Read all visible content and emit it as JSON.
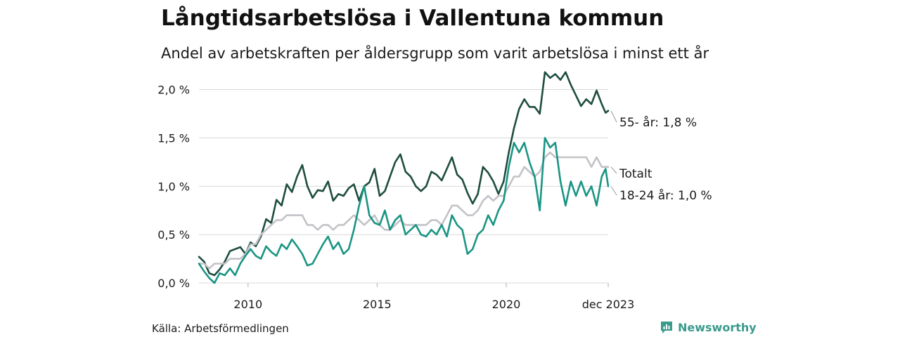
{
  "header": {
    "title": "Långtidsarbetslösa i Vallentuna kommun",
    "subtitle": "Andel av arbetskraften per åldersgrupp som varit arbetslösa i minst ett år"
  },
  "footer": {
    "source": "Källa: Arbetsförmedlingen",
    "brand": "Newsworthy"
  },
  "colors": {
    "older": "#1e4d40",
    "young": "#1a9583",
    "total": "#c4c2c8",
    "grid": "#d9d9d9",
    "brand": "#3a9a8c"
  },
  "chart_data": {
    "type": "line",
    "xlim": [
      2008.1,
      2023.95
    ],
    "ylim": [
      0,
      2.2
    ],
    "y_ticks": [
      {
        "value": 0.0,
        "label": "0,0 %"
      },
      {
        "value": 0.5,
        "label": "0,5 %"
      },
      {
        "value": 1.0,
        "label": "1,0 %"
      },
      {
        "value": 1.5,
        "label": "1,5 %"
      },
      {
        "value": 2.0,
        "label": "2,0 %"
      }
    ],
    "x_ticks": [
      {
        "value": 2010,
        "label": "2010"
      },
      {
        "value": 2015,
        "label": "2015"
      },
      {
        "value": 2020,
        "label": "2020"
      },
      {
        "value": 2023.95,
        "label": "dec 2023"
      }
    ],
    "series": [
      {
        "key": "older",
        "name": "55- år",
        "end_label": "55- år: 1,8 %",
        "points": [
          [
            2008.1,
            0.27
          ],
          [
            2008.3,
            0.22
          ],
          [
            2008.5,
            0.1
          ],
          [
            2008.7,
            0.08
          ],
          [
            2008.9,
            0.14
          ],
          [
            2009.1,
            0.22
          ],
          [
            2009.3,
            0.33
          ],
          [
            2009.5,
            0.35
          ],
          [
            2009.7,
            0.37
          ],
          [
            2009.9,
            0.3
          ],
          [
            2010.1,
            0.42
          ],
          [
            2010.3,
            0.38
          ],
          [
            2010.5,
            0.48
          ],
          [
            2010.7,
            0.66
          ],
          [
            2010.9,
            0.62
          ],
          [
            2011.1,
            0.86
          ],
          [
            2011.3,
            0.8
          ],
          [
            2011.5,
            1.02
          ],
          [
            2011.7,
            0.94
          ],
          [
            2011.9,
            1.1
          ],
          [
            2012.1,
            1.22
          ],
          [
            2012.3,
            1.0
          ],
          [
            2012.5,
            0.88
          ],
          [
            2012.7,
            0.96
          ],
          [
            2012.9,
            0.95
          ],
          [
            2013.1,
            1.05
          ],
          [
            2013.3,
            0.85
          ],
          [
            2013.5,
            0.92
          ],
          [
            2013.7,
            0.9
          ],
          [
            2013.9,
            0.98
          ],
          [
            2014.1,
            1.02
          ],
          [
            2014.3,
            0.85
          ],
          [
            2014.5,
            1.0
          ],
          [
            2014.7,
            1.04
          ],
          [
            2014.9,
            1.18
          ],
          [
            2015.1,
            0.9
          ],
          [
            2015.3,
            0.95
          ],
          [
            2015.5,
            1.1
          ],
          [
            2015.7,
            1.25
          ],
          [
            2015.9,
            1.33
          ],
          [
            2016.1,
            1.15
          ],
          [
            2016.3,
            1.1
          ],
          [
            2016.5,
            1.0
          ],
          [
            2016.7,
            0.95
          ],
          [
            2016.9,
            1.0
          ],
          [
            2017.1,
            1.15
          ],
          [
            2017.3,
            1.12
          ],
          [
            2017.5,
            1.06
          ],
          [
            2017.7,
            1.18
          ],
          [
            2017.9,
            1.3
          ],
          [
            2018.1,
            1.12
          ],
          [
            2018.3,
            1.07
          ],
          [
            2018.5,
            0.93
          ],
          [
            2018.7,
            0.82
          ],
          [
            2018.9,
            0.92
          ],
          [
            2019.1,
            1.2
          ],
          [
            2019.3,
            1.14
          ],
          [
            2019.5,
            1.05
          ],
          [
            2019.7,
            0.92
          ],
          [
            2019.9,
            1.05
          ],
          [
            2020.1,
            1.35
          ],
          [
            2020.3,
            1.6
          ],
          [
            2020.5,
            1.8
          ],
          [
            2020.7,
            1.9
          ],
          [
            2020.9,
            1.82
          ],
          [
            2021.1,
            1.82
          ],
          [
            2021.3,
            1.75
          ],
          [
            2021.5,
            2.18
          ],
          [
            2021.7,
            2.12
          ],
          [
            2021.9,
            2.16
          ],
          [
            2022.1,
            2.1
          ],
          [
            2022.3,
            2.18
          ],
          [
            2022.5,
            2.05
          ],
          [
            2022.7,
            1.94
          ],
          [
            2022.9,
            1.83
          ],
          [
            2023.1,
            1.9
          ],
          [
            2023.3,
            1.85
          ],
          [
            2023.5,
            1.99
          ],
          [
            2023.7,
            1.85
          ],
          [
            2023.85,
            1.76
          ],
          [
            2023.95,
            1.78
          ]
        ]
      },
      {
        "key": "total",
        "name": "Totalt",
        "end_label": "Totalt",
        "points": [
          [
            2008.1,
            0.2
          ],
          [
            2008.3,
            0.2
          ],
          [
            2008.5,
            0.15
          ],
          [
            2008.7,
            0.2
          ],
          [
            2008.9,
            0.2
          ],
          [
            2009.1,
            0.2
          ],
          [
            2009.3,
            0.25
          ],
          [
            2009.5,
            0.25
          ],
          [
            2009.7,
            0.25
          ],
          [
            2009.9,
            0.3
          ],
          [
            2010.1,
            0.4
          ],
          [
            2010.3,
            0.4
          ],
          [
            2010.5,
            0.5
          ],
          [
            2010.7,
            0.55
          ],
          [
            2010.9,
            0.6
          ],
          [
            2011.1,
            0.65
          ],
          [
            2011.3,
            0.65
          ],
          [
            2011.5,
            0.7
          ],
          [
            2011.7,
            0.7
          ],
          [
            2011.9,
            0.7
          ],
          [
            2012.1,
            0.7
          ],
          [
            2012.3,
            0.6
          ],
          [
            2012.5,
            0.6
          ],
          [
            2012.7,
            0.55
          ],
          [
            2012.9,
            0.6
          ],
          [
            2013.1,
            0.6
          ],
          [
            2013.3,
            0.55
          ],
          [
            2013.5,
            0.6
          ],
          [
            2013.7,
            0.6
          ],
          [
            2013.9,
            0.65
          ],
          [
            2014.1,
            0.7
          ],
          [
            2014.3,
            0.65
          ],
          [
            2014.5,
            0.6
          ],
          [
            2014.7,
            0.65
          ],
          [
            2014.9,
            0.7
          ],
          [
            2015.1,
            0.6
          ],
          [
            2015.3,
            0.55
          ],
          [
            2015.5,
            0.55
          ],
          [
            2015.7,
            0.6
          ],
          [
            2015.9,
            0.65
          ],
          [
            2016.1,
            0.6
          ],
          [
            2016.3,
            0.6
          ],
          [
            2016.5,
            0.6
          ],
          [
            2016.7,
            0.6
          ],
          [
            2016.9,
            0.6
          ],
          [
            2017.1,
            0.65
          ],
          [
            2017.3,
            0.65
          ],
          [
            2017.5,
            0.6
          ],
          [
            2017.7,
            0.7
          ],
          [
            2017.9,
            0.8
          ],
          [
            2018.1,
            0.8
          ],
          [
            2018.3,
            0.75
          ],
          [
            2018.5,
            0.7
          ],
          [
            2018.7,
            0.7
          ],
          [
            2018.9,
            0.75
          ],
          [
            2019.1,
            0.85
          ],
          [
            2019.3,
            0.9
          ],
          [
            2019.5,
            0.85
          ],
          [
            2019.7,
            0.9
          ],
          [
            2019.9,
            0.9
          ],
          [
            2020.1,
            1.0
          ],
          [
            2020.3,
            1.1
          ],
          [
            2020.5,
            1.1
          ],
          [
            2020.7,
            1.2
          ],
          [
            2020.9,
            1.15
          ],
          [
            2021.1,
            1.1
          ],
          [
            2021.3,
            1.15
          ],
          [
            2021.5,
            1.3
          ],
          [
            2021.7,
            1.35
          ],
          [
            2021.9,
            1.3
          ],
          [
            2022.1,
            1.3
          ],
          [
            2022.3,
            1.3
          ],
          [
            2022.5,
            1.3
          ],
          [
            2022.7,
            1.3
          ],
          [
            2022.9,
            1.3
          ],
          [
            2023.1,
            1.3
          ],
          [
            2023.3,
            1.2
          ],
          [
            2023.5,
            1.3
          ],
          [
            2023.7,
            1.2
          ],
          [
            2023.85,
            1.2
          ],
          [
            2023.95,
            1.2
          ]
        ]
      },
      {
        "key": "young",
        "name": "18-24 år",
        "end_label": "18-24 år: 1,0 %",
        "points": [
          [
            2008.1,
            0.2
          ],
          [
            2008.3,
            0.12
          ],
          [
            2008.5,
            0.05
          ],
          [
            2008.7,
            0.0
          ],
          [
            2008.9,
            0.1
          ],
          [
            2009.1,
            0.08
          ],
          [
            2009.3,
            0.15
          ],
          [
            2009.5,
            0.08
          ],
          [
            2009.7,
            0.2
          ],
          [
            2009.9,
            0.28
          ],
          [
            2010.1,
            0.35
          ],
          [
            2010.3,
            0.28
          ],
          [
            2010.5,
            0.25
          ],
          [
            2010.7,
            0.38
          ],
          [
            2010.9,
            0.32
          ],
          [
            2011.1,
            0.28
          ],
          [
            2011.3,
            0.4
          ],
          [
            2011.5,
            0.35
          ],
          [
            2011.7,
            0.45
          ],
          [
            2011.9,
            0.38
          ],
          [
            2012.1,
            0.3
          ],
          [
            2012.3,
            0.18
          ],
          [
            2012.5,
            0.2
          ],
          [
            2012.7,
            0.3
          ],
          [
            2012.9,
            0.4
          ],
          [
            2013.1,
            0.48
          ],
          [
            2013.3,
            0.35
          ],
          [
            2013.5,
            0.42
          ],
          [
            2013.7,
            0.3
          ],
          [
            2013.9,
            0.35
          ],
          [
            2014.1,
            0.55
          ],
          [
            2014.3,
            0.8
          ],
          [
            2014.5,
            1.0
          ],
          [
            2014.7,
            0.7
          ],
          [
            2014.9,
            0.62
          ],
          [
            2015.1,
            0.6
          ],
          [
            2015.3,
            0.75
          ],
          [
            2015.5,
            0.55
          ],
          [
            2015.7,
            0.65
          ],
          [
            2015.9,
            0.7
          ],
          [
            2016.1,
            0.5
          ],
          [
            2016.3,
            0.55
          ],
          [
            2016.5,
            0.6
          ],
          [
            2016.7,
            0.5
          ],
          [
            2016.9,
            0.48
          ],
          [
            2017.1,
            0.55
          ],
          [
            2017.3,
            0.5
          ],
          [
            2017.5,
            0.6
          ],
          [
            2017.7,
            0.48
          ],
          [
            2017.9,
            0.7
          ],
          [
            2018.1,
            0.6
          ],
          [
            2018.3,
            0.55
          ],
          [
            2018.5,
            0.3
          ],
          [
            2018.7,
            0.35
          ],
          [
            2018.9,
            0.5
          ],
          [
            2019.1,
            0.55
          ],
          [
            2019.3,
            0.7
          ],
          [
            2019.5,
            0.6
          ],
          [
            2019.7,
            0.75
          ],
          [
            2019.9,
            0.85
          ],
          [
            2020.1,
            1.2
          ],
          [
            2020.3,
            1.45
          ],
          [
            2020.5,
            1.35
          ],
          [
            2020.7,
            1.45
          ],
          [
            2020.9,
            1.25
          ],
          [
            2021.1,
            1.1
          ],
          [
            2021.3,
            0.75
          ],
          [
            2021.5,
            1.5
          ],
          [
            2021.7,
            1.4
          ],
          [
            2021.9,
            1.45
          ],
          [
            2022.1,
            1.05
          ],
          [
            2022.3,
            0.8
          ],
          [
            2022.5,
            1.05
          ],
          [
            2022.7,
            0.9
          ],
          [
            2022.9,
            1.05
          ],
          [
            2023.1,
            0.9
          ],
          [
            2023.3,
            1.0
          ],
          [
            2023.5,
            0.8
          ],
          [
            2023.7,
            1.1
          ],
          [
            2023.85,
            1.18
          ],
          [
            2023.95,
            1.0
          ]
        ]
      }
    ]
  }
}
